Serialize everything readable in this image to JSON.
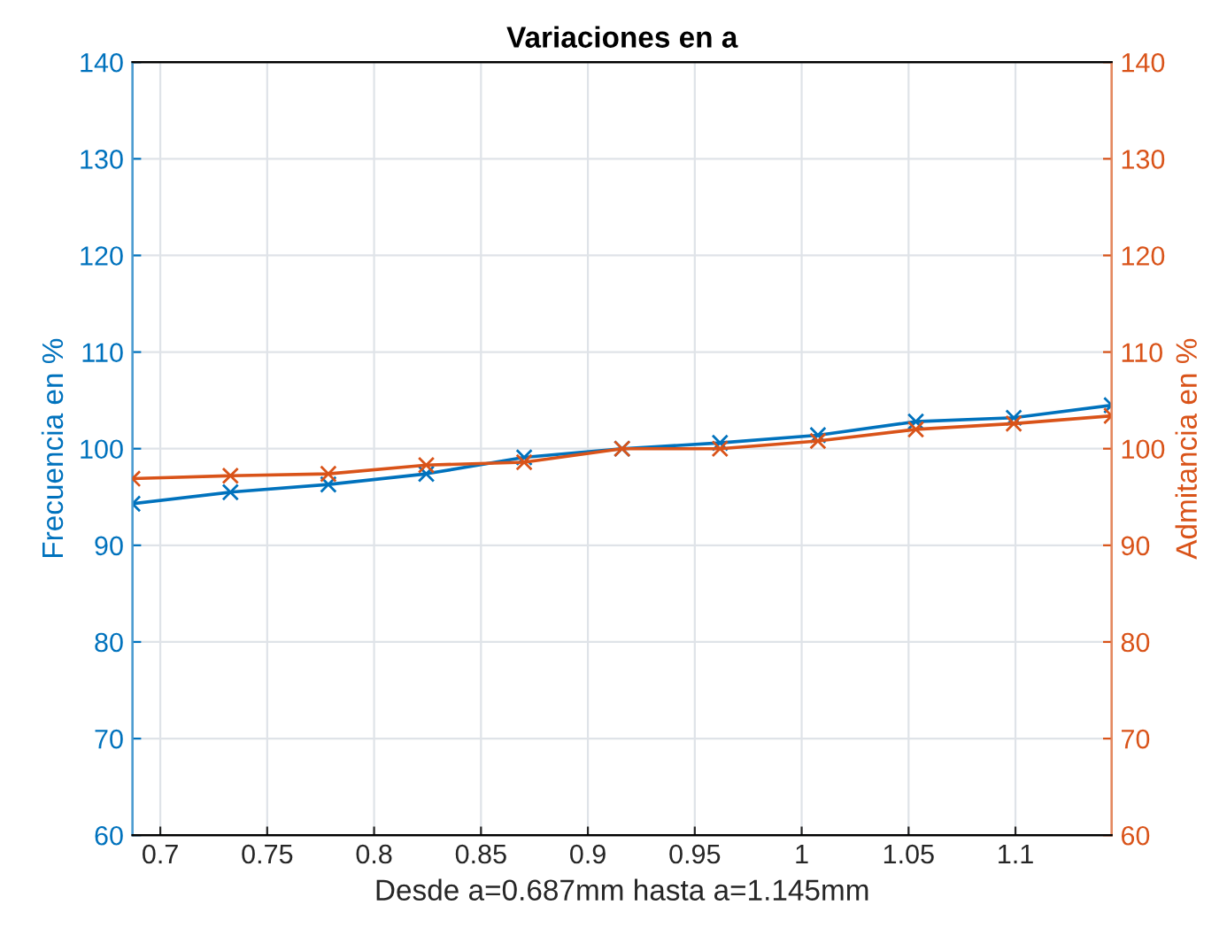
{
  "chart_data": {
    "type": "line",
    "title": "Variaciones en a",
    "xlabel": "Desde a=0.687mm hasta a=1.145mm",
    "ylabel": "Frecuencia en %",
    "y2label": "Admitancia en %",
    "x": [
      0.687,
      0.7328,
      0.7786,
      0.8244,
      0.8702,
      0.916,
      0.9618,
      1.0076,
      1.0534,
      1.0992,
      1.145
    ],
    "series": [
      {
        "color": "#0072bd",
        "values": [
          94.3,
          95.5,
          96.3,
          97.4,
          99.1,
          100,
          100.6,
          101.4,
          102.8,
          103.2,
          104.5
        ]
      },
      {
        "color": "#d95319",
        "axis": "y2",
        "values": [
          96.9,
          97.2,
          97.4,
          98.3,
          98.6,
          100,
          100,
          100.8,
          102.0,
          102.6,
          103.4
        ]
      }
    ],
    "xlim": [
      0.687,
      1.145
    ],
    "xticks": [
      0.7,
      0.75,
      0.8,
      0.85,
      0.9,
      0.95,
      1,
      1.05,
      1.1
    ],
    "ylim": [
      60,
      140
    ],
    "yticks": [
      60,
      70,
      80,
      90,
      100,
      110,
      120,
      130,
      140
    ],
    "y2lim": [
      60,
      140
    ],
    "y2ticks": [
      60,
      70,
      80,
      90,
      100,
      110,
      120,
      130,
      140
    ],
    "grid": true,
    "marker": "cross",
    "line_style": "solid"
  }
}
